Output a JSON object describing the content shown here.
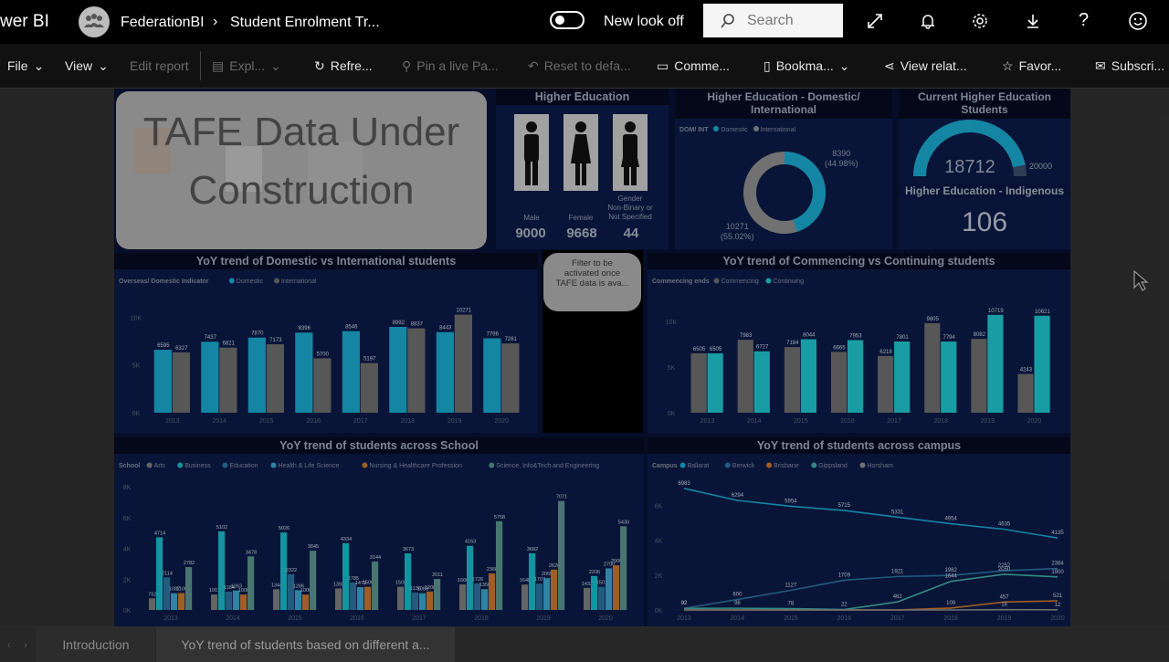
{
  "header": {
    "app_name": "wer BI",
    "workspace": "FederationBI",
    "report_title": "Student Enrolment Tr...",
    "new_look_label": "New look off",
    "search_placeholder": "Search"
  },
  "toolbar": {
    "file": "File",
    "view": "View",
    "edit_report": "Edit report",
    "explore": "Expl...",
    "refresh": "Refre...",
    "pin_live": "Pin a live Pa...",
    "reset": "Reset to defa...",
    "comments": "Comme...",
    "bookmarks": "Bookma...",
    "view_related": "View relat...",
    "favorite": "Favor...",
    "subscribe": "Subscri..."
  },
  "dashboard": {
    "banner_text_line1": "TAFE Data Under",
    "banner_text_line2": "Construction",
    "higher_ed": {
      "title": "Higher Education",
      "male_label": "Male",
      "male_value": "9000",
      "female_label": "Female",
      "female_value": "9668",
      "other_label_1": "Gender",
      "other_label_2": "Non-Binary or",
      "other_label_3": "Not Specified",
      "other_value": "44"
    },
    "dom_int": {
      "title_1": "Higher Education - Domestic/",
      "title_2": "International",
      "legend_title": "DOM/ INT",
      "legend_domestic": "Domestic",
      "legend_international": "International",
      "label_int_value": "8390",
      "label_int_pct": "(44.98%)",
      "label_dom_value": "10271",
      "label_dom_pct": "(55.02%)",
      "domestic_fraction": 0.5502
    },
    "current": {
      "title_1": "Current Higher Education",
      "title_2": "Students",
      "value": "18712",
      "max": "20000",
      "fraction": 0.9356
    },
    "indigenous": {
      "title": "Higher Education - Indigenous",
      "value": "106"
    },
    "filter_note": {
      "line1": "Filter to be",
      "line2": "activated once",
      "line3": "TAFE data is ava..."
    },
    "chart_titles": {
      "dom_vs_int": "YoY trend of Domestic vs International students",
      "comm_vs_cont": "YoY trend of Commencing vs Continuing students",
      "school": "YoY trend of students across School",
      "campus": "YoY trend of students across campus"
    }
  },
  "chart_data": [
    {
      "type": "bar",
      "title": "YoY trend of Domestic vs International students",
      "legend_title": "Overseas/ Domestic Indicator",
      "categories": [
        "2013",
        "2014",
        "2015",
        "2016",
        "2017",
        "2018",
        "2019",
        "2020"
      ],
      "series": [
        {
          "name": "Domestic",
          "values": [
            6595,
            7437,
            7870,
            8396,
            8546,
            8992,
            8443,
            7796
          ],
          "color": "#1aa3c9"
        },
        {
          "name": "International",
          "values": [
            6327,
            6821,
            7173,
            5700,
            5197,
            8837,
            10271,
            7261
          ],
          "color": "#6b6b6b"
        }
      ],
      "yticks": [
        "0K",
        "5K",
        "10K"
      ],
      "ylim": [
        0,
        11000
      ]
    },
    {
      "type": "bar",
      "title": "YoY trend of Commencing vs Continuing students",
      "legend_title": "Commencing ends",
      "categories": [
        "2013",
        "2014",
        "2015",
        "2016",
        "2017",
        "2018",
        "2019",
        "2020"
      ],
      "series": [
        {
          "name": "Commencing",
          "values": [
            6505,
            7983,
            7184,
            6665,
            6218,
            9805,
            8082,
            4243
          ],
          "color": "#6b6b6b"
        },
        {
          "name": "Continuing",
          "values": [
            6505,
            6727,
            8044,
            7953,
            7801,
            7794,
            10719,
            10621
          ],
          "color": "#1fc0c9"
        }
      ],
      "yticks": [
        "0K",
        "5K",
        "10K"
      ],
      "ylim": [
        0,
        11500
      ]
    },
    {
      "type": "bar",
      "title": "YoY trend of students across School",
      "legend_title": "School",
      "categories": [
        "2013",
        "2014",
        "2015",
        "2016",
        "2017",
        "2018",
        "2019",
        "2020"
      ],
      "series": [
        {
          "name": "Arts",
          "values": [
            752,
            1001,
            1344,
            1392,
            1503,
            1660,
            1648,
            1433
          ],
          "color": "#7a7a7a"
        },
        {
          "name": "Business",
          "values": [
            4714,
            5102,
            5026,
            4334,
            3673,
            4163,
            3682,
            2206
          ],
          "color": "#19b5c4"
        },
        {
          "name": "Education",
          "values": [
            2114,
            1184,
            2322,
            1785,
            1136,
            1726,
            1707,
            1501
          ],
          "color": "#2a6f9a"
        },
        {
          "name": "Health & Life Science",
          "values": [
            1087,
            1263,
            1286,
            1479,
            1083,
            1350,
            2065,
            2700
          ],
          "color": "#3aa0c7"
        },
        {
          "name": "Nursing & Healthcare Profession",
          "values": [
            1100,
            1000,
            1000,
            1500,
            1200,
            2366,
            2620,
            2900
          ],
          "color": "#c4722f"
        },
        {
          "name": "Science, Info&Tech and Engineering",
          "values": [
            2782,
            3478,
            3845,
            3144,
            2011,
            5758,
            7071,
            5430
          ],
          "color": "#5a8f8a"
        }
      ],
      "yticks": [
        "0K",
        "2K",
        "4K",
        "6K",
        "8K"
      ],
      "ylim": [
        0,
        8000
      ]
    },
    {
      "type": "line",
      "title": "YoY trend of students across campus",
      "legend_title": "Campus",
      "x": [
        "2013",
        "2014",
        "2015",
        "2016",
        "2017",
        "2018",
        "2019",
        "2020"
      ],
      "series": [
        {
          "name": "Ballarat",
          "values": [
            6983,
            6294,
            5954,
            5715,
            5331,
            4954,
            4635,
            4135
          ],
          "color": "#1aa3c9"
        },
        {
          "name": "Berwick",
          "values": [
            92,
            600,
            1127,
            1709,
            1921,
            1982,
            2252,
            2384
          ],
          "color": "#2a6f9a"
        },
        {
          "name": "Brisbane",
          "values": [
            0,
            0,
            0,
            0,
            0,
            109,
            457,
            521
          ],
          "color": "#c4722f"
        },
        {
          "name": "Gippsland",
          "values": [
            92,
            98,
            78,
            22,
            462,
            1644,
            2050,
            1900
          ],
          "color": "#3fa9a0"
        },
        {
          "name": "Horsham",
          "values": [
            0,
            0,
            0,
            0,
            0,
            0,
            18,
            12
          ],
          "color": "#8a8a8a"
        }
      ],
      "yticks": [
        "0K",
        "2K",
        "4K",
        "6K"
      ],
      "ylim": [
        0,
        7500
      ]
    }
  ],
  "tabs": {
    "intro": "Introduction",
    "yoy": "YoY trend of students based on different a..."
  },
  "colors": {
    "accent_blue": "#1aa3c9",
    "teal": "#1fc0c9",
    "grey": "#6b6b6b",
    "navy": "#0b1a45"
  }
}
